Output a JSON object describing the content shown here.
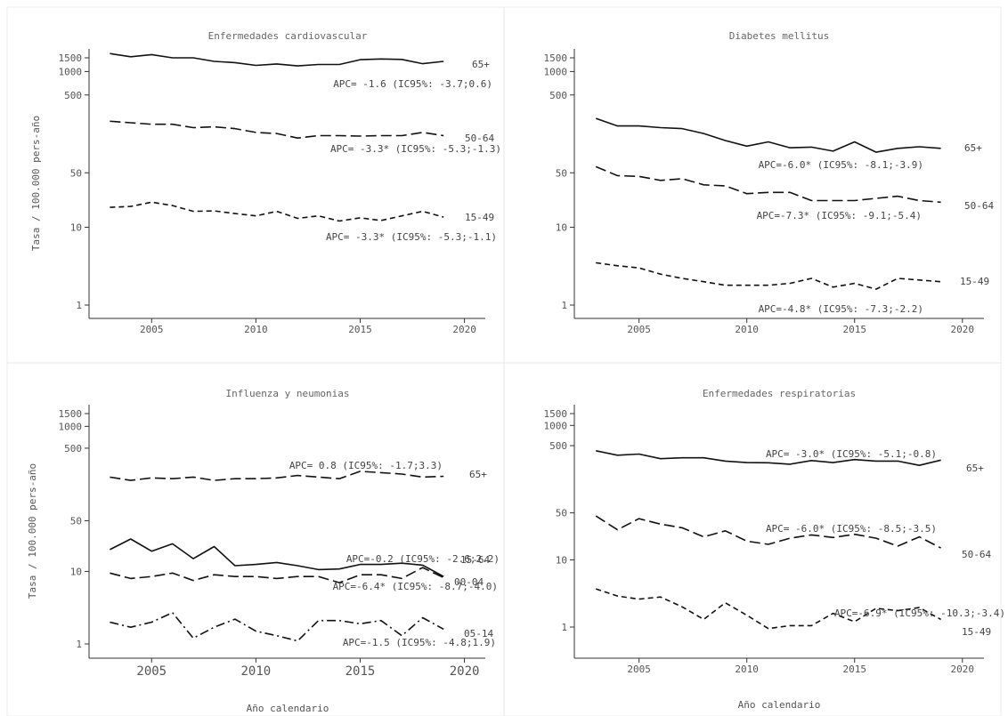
{
  "figure": {
    "ylabel": "Tasa / 100.000 pers-año",
    "xlabel": "Año calendario"
  },
  "chart_data": [
    {
      "type": "line",
      "title": "Enfermedades cardiovascular",
      "ylabel": "Tasa / 100.000 pers-año",
      "xlabel": "",
      "yscale": "log",
      "ylim": [
        0.6,
        2000
      ],
      "xlim": [
        2002,
        2021
      ],
      "xticks": [
        2005,
        2010,
        2015,
        2020
      ],
      "yticks": [
        1,
        10,
        50,
        500,
        1000,
        1500
      ],
      "x": [
        2003,
        2004,
        2005,
        2006,
        2007,
        2008,
        2009,
        2010,
        2011,
        2012,
        2013,
        2014,
        2015,
        2016,
        2017,
        2018,
        2019
      ],
      "series": [
        {
          "name": "65+",
          "style": "solid",
          "label": "65+",
          "apc": "APC= -1.6 (IC95%: -3.7;0.6)",
          "values": [
            1700,
            1550,
            1650,
            1500,
            1500,
            1350,
            1300,
            1200,
            1250,
            1180,
            1230,
            1230,
            1420,
            1450,
            1430,
            1260,
            1350
          ]
        },
        {
          "name": "50-64",
          "style": "dashed",
          "label": "50-64",
          "apc": "APC= -3.3* (IC95%: -5.3;-1.3)",
          "values": [
            230,
            220,
            210,
            210,
            190,
            195,
            185,
            165,
            160,
            140,
            150,
            150,
            148,
            150,
            150,
            165,
            150
          ]
        },
        {
          "name": "15-49",
          "style": "short-dash",
          "label": "15-49",
          "apc": "APC= -3.3* (IC95%: -5.3;-1.1)",
          "values": [
            18,
            18.5,
            21,
            19,
            16,
            16.2,
            15,
            14,
            16,
            13,
            14,
            12,
            13.2,
            12.2,
            14,
            16,
            13.5
          ]
        }
      ]
    },
    {
      "type": "line",
      "title": "Diabetes mellitus",
      "ylabel": "",
      "xlabel": "",
      "yscale": "log",
      "ylim": [
        0.6,
        2000
      ],
      "xlim": [
        2002,
        2021
      ],
      "xticks": [
        2005,
        2010,
        2015,
        2020
      ],
      "yticks": [
        1,
        10,
        50,
        500,
        1000,
        1500
      ],
      "x": [
        2003,
        2004,
        2005,
        2006,
        2007,
        2008,
        2009,
        2010,
        2011,
        2012,
        2013,
        2014,
        2015,
        2016,
        2017,
        2018,
        2019
      ],
      "series": [
        {
          "name": "65+",
          "style": "solid",
          "label": "65+",
          "apc": "APC=-6.0* (IC95%: -8.1;-3.9)",
          "values": [
            250,
            200,
            200,
            190,
            185,
            160,
            130,
            110,
            125,
            105,
            107,
            95,
            125,
            92,
            103,
            108,
            103
          ]
        },
        {
          "name": "50-64",
          "style": "dashed",
          "label": "50-64",
          "apc": "APC=-7.3* (IC95%: -9.1;-5.4)",
          "values": [
            60,
            46,
            45,
            40,
            42,
            35,
            34,
            27,
            28,
            28,
            22,
            22,
            22,
            23.5,
            25,
            22,
            21
          ]
        },
        {
          "name": "15-49",
          "style": "short-dash",
          "label": "15-49",
          "apc": "APC=-4.8* (IC95%: -7.3;-2.2)",
          "values": [
            3.5,
            3.2,
            3.0,
            2.5,
            2.2,
            2.0,
            1.8,
            1.8,
            1.8,
            1.9,
            2.2,
            1.7,
            1.9,
            1.6,
            2.2,
            2.1,
            2.0
          ]
        }
      ]
    },
    {
      "type": "line",
      "title": "Influenza y neumonias",
      "ylabel": "Tasa / 100.000 pers-año",
      "xlabel": "Año calendario",
      "yscale": "log",
      "ylim": [
        0.6,
        2000
      ],
      "xlim": [
        2002,
        2021
      ],
      "xticks": [
        2005,
        2010,
        2015,
        2020
      ],
      "yticks": [
        1,
        10,
        50,
        500,
        1000,
        1500
      ],
      "x": [
        2003,
        2004,
        2005,
        2006,
        2007,
        2008,
        2009,
        2010,
        2011,
        2012,
        2013,
        2014,
        2015,
        2016,
        2017,
        2018,
        2019
      ],
      "series": [
        {
          "name": "65+",
          "style": "dashed",
          "label": "65+",
          "apc": "APC= 0.8 (IC95%: -1.7;3.3)",
          "values": [
            200,
            180,
            195,
            190,
            200,
            180,
            190,
            190,
            195,
            210,
            200,
            190,
            240,
            230,
            220,
            200,
            205
          ]
        },
        {
          "name": "15-64",
          "style": "solid",
          "label": "15-64",
          "apc": "APC=-0.2 (IC95%: -2.6;2.2)",
          "values": [
            20,
            28,
            19,
            24,
            15,
            22,
            12,
            12.5,
            13.3,
            12,
            10.6,
            10.8,
            12.5,
            12.5,
            13.0,
            12.2,
            8.5
          ]
        },
        {
          "name": "00-04",
          "style": "dashed",
          "label": "00-04",
          "apc": "APC=-6.4* (IC95%: -8.7;-4.0)",
          "values": [
            9.5,
            8,
            8.5,
            9.5,
            7.5,
            9,
            8.5,
            8.5,
            8,
            8.5,
            8.5,
            7,
            9,
            9,
            8,
            11.3,
            8.2
          ]
        },
        {
          "name": "05-14",
          "style": "dash-dot",
          "label": "05-14",
          "apc": "APC=-1.5 (IC95%: -4.8;1.9)",
          "values": [
            2.0,
            1.7,
            2.0,
            2.7,
            1.2,
            1.7,
            2.2,
            1.5,
            1.3,
            1.1,
            2.1,
            2.1,
            1.9,
            2.1,
            1.3,
            2.3,
            1.6
          ]
        }
      ]
    },
    {
      "type": "line",
      "title": "Enfermedades respiratorias",
      "ylabel": "",
      "xlabel": "Año calendario",
      "yscale": "log",
      "ylim": [
        0.6,
        2000
      ],
      "xlim": [
        2002,
        2021
      ],
      "xticks": [
        2005,
        2010,
        2015,
        2020
      ],
      "yticks": [
        1,
        10,
        50,
        500,
        1000,
        1500
      ],
      "x": [
        2003,
        2004,
        2005,
        2006,
        2007,
        2008,
        2009,
        2010,
        2011,
        2012,
        2013,
        2014,
        2015,
        2016,
        2017,
        2018,
        2019
      ],
      "series": [
        {
          "name": "65+",
          "style": "solid",
          "label": "65+",
          "apc": "APC= -3.0* (IC95%: -5.1;-0.8)",
          "values": [
            420,
            360,
            375,
            320,
            330,
            330,
            295,
            280,
            278,
            265,
            300,
            280,
            310,
            295,
            295,
            255,
            305
          ]
        },
        {
          "name": "50-64",
          "style": "dashed",
          "label": "50-64",
          "apc": "APC= -6.0* (IC95%: -8.5;-3.5)",
          "values": [
            45,
            28,
            41,
            34,
            30,
            22,
            27,
            19,
            17,
            21,
            23.5,
            21.5,
            24,
            21,
            16,
            22,
            15
          ]
        },
        {
          "name": "15-49",
          "style": "short-dash",
          "label": "15-49",
          "apc": "APC=-6.9* (IC95%: -10.3;-3.4)",
          "values": [
            3.7,
            2.9,
            2.6,
            2.8,
            2.0,
            1.3,
            2.3,
            1.5,
            0.95,
            1.05,
            1.05,
            1.6,
            1.2,
            1.9,
            1.75,
            1.95,
            1.3
          ]
        }
      ]
    }
  ]
}
